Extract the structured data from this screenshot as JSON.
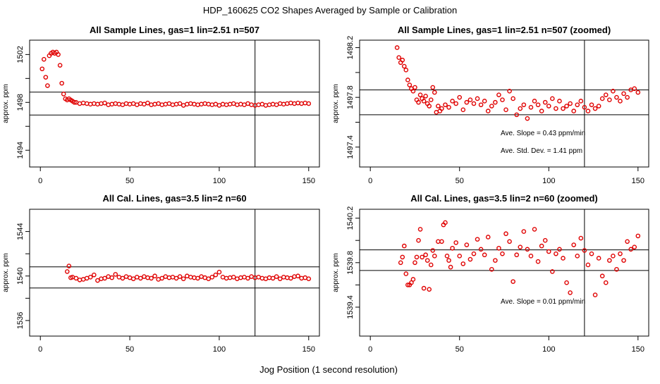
{
  "figure": {
    "title": "HDP_160625  CO2 Shapes Averaged by Sample or Calibration",
    "xlabel": "Jog Position (1 second resolution)"
  },
  "colors": {
    "points": "#e00000",
    "axes": "#000000",
    "background": "#ffffff"
  },
  "chart_data": [
    {
      "type": "scatter",
      "title": "All Sample Lines, gas=1 lin=2.51 n=507",
      "xlabel": "",
      "ylabel": "approx. ppm",
      "xlim": [
        -6,
        156
      ],
      "ylim": [
        1492.6,
        1503.2
      ],
      "x_ticks": [
        0,
        50,
        100,
        150
      ],
      "y_ticks": [
        1494,
        1498,
        1502
      ],
      "hlines": [
        1498.86,
        1496.94
      ],
      "vline": 120,
      "grid": false,
      "annotations": [],
      "points": [
        [
          1,
          1500.8
        ],
        [
          2,
          1501.6
        ],
        [
          3,
          1500.1
        ],
        [
          4,
          1499.4
        ],
        [
          5,
          1501.9
        ],
        [
          6,
          1502.1
        ],
        [
          7,
          1502.2
        ],
        [
          8,
          1502.1
        ],
        [
          9,
          1502.2
        ],
        [
          10,
          1502.0
        ],
        [
          11,
          1501.1
        ],
        [
          12,
          1499.6
        ],
        [
          13,
          1498.7
        ],
        [
          14,
          1498.3
        ],
        [
          15,
          1498.2
        ],
        [
          16,
          1498.3
        ],
        [
          17,
          1498.2
        ],
        [
          18,
          1498.1
        ],
        [
          19,
          1498.0
        ],
        [
          20,
          1498.0
        ],
        [
          22,
          1497.9
        ],
        [
          24,
          1497.95
        ],
        [
          26,
          1497.9
        ],
        [
          28,
          1497.85
        ],
        [
          30,
          1497.9
        ],
        [
          32,
          1497.85
        ],
        [
          34,
          1497.9
        ],
        [
          36,
          1497.95
        ],
        [
          38,
          1497.8
        ],
        [
          40,
          1497.85
        ],
        [
          42,
          1497.9
        ],
        [
          44,
          1497.85
        ],
        [
          46,
          1497.8
        ],
        [
          48,
          1497.9
        ],
        [
          50,
          1497.85
        ],
        [
          52,
          1497.9
        ],
        [
          54,
          1497.8
        ],
        [
          56,
          1497.9
        ],
        [
          58,
          1497.85
        ],
        [
          60,
          1497.95
        ],
        [
          62,
          1497.8
        ],
        [
          64,
          1497.85
        ],
        [
          66,
          1497.9
        ],
        [
          68,
          1497.8
        ],
        [
          70,
          1497.85
        ],
        [
          72,
          1497.9
        ],
        [
          74,
          1497.8
        ],
        [
          76,
          1497.85
        ],
        [
          78,
          1497.9
        ],
        [
          80,
          1497.75
        ],
        [
          82,
          1497.85
        ],
        [
          84,
          1497.9
        ],
        [
          86,
          1497.85
        ],
        [
          88,
          1497.8
        ],
        [
          90,
          1497.85
        ],
        [
          92,
          1497.9
        ],
        [
          94,
          1497.85
        ],
        [
          96,
          1497.8
        ],
        [
          98,
          1497.85
        ],
        [
          100,
          1497.75
        ],
        [
          102,
          1497.85
        ],
        [
          104,
          1497.8
        ],
        [
          106,
          1497.85
        ],
        [
          108,
          1497.9
        ],
        [
          110,
          1497.8
        ],
        [
          112,
          1497.85
        ],
        [
          114,
          1497.8
        ],
        [
          116,
          1497.9
        ],
        [
          118,
          1497.8
        ],
        [
          120,
          1497.75
        ],
        [
          122,
          1497.8
        ],
        [
          124,
          1497.85
        ],
        [
          126,
          1497.75
        ],
        [
          128,
          1497.8
        ],
        [
          130,
          1497.85
        ],
        [
          132,
          1497.8
        ],
        [
          134,
          1497.9
        ],
        [
          136,
          1497.85
        ],
        [
          138,
          1497.9
        ],
        [
          140,
          1497.95
        ],
        [
          142,
          1497.9
        ],
        [
          144,
          1497.95
        ],
        [
          146,
          1497.9
        ],
        [
          148,
          1497.95
        ],
        [
          150,
          1497.9
        ]
      ]
    },
    {
      "type": "scatter",
      "title": "All Sample Lines, gas=1 lin=2.51 n=507 (zoomed)",
      "xlabel": "",
      "ylabel": "approx. ppm",
      "xlim": [
        -6,
        156
      ],
      "ylim": [
        1497.24,
        1498.26
      ],
      "x_ticks": [
        0,
        50,
        100,
        150
      ],
      "y_ticks": [
        1497.4,
        1497.8,
        1498.2
      ],
      "hlines": [
        1497.86,
        1497.66
      ],
      "vline": 120,
      "grid": false,
      "annotations": [
        "Ave. Slope =  0.43  ppm/min",
        "Ave. Std. Dev. =  1.41  ppm"
      ],
      "points": [
        [
          15,
          1498.2
        ],
        [
          16,
          1498.12
        ],
        [
          17,
          1498.08
        ],
        [
          18,
          1498.1
        ],
        [
          19,
          1498.05
        ],
        [
          20,
          1498.02
        ],
        [
          21,
          1497.94
        ],
        [
          22,
          1497.9
        ],
        [
          23,
          1497.87
        ],
        [
          24,
          1497.85
        ],
        [
          25,
          1497.88
        ],
        [
          26,
          1497.78
        ],
        [
          27,
          1497.76
        ],
        [
          28,
          1497.82
        ],
        [
          29,
          1497.79
        ],
        [
          30,
          1497.77
        ],
        [
          31,
          1497.81
        ],
        [
          32,
          1497.75
        ],
        [
          33,
          1497.73
        ],
        [
          34,
          1497.78
        ],
        [
          35,
          1497.88
        ],
        [
          36,
          1497.84
        ],
        [
          37,
          1497.68
        ],
        [
          38,
          1497.73
        ],
        [
          39,
          1497.69
        ],
        [
          40,
          1497.71
        ],
        [
          42,
          1497.74
        ],
        [
          44,
          1497.72
        ],
        [
          46,
          1497.77
        ],
        [
          48,
          1497.75
        ],
        [
          50,
          1497.8
        ],
        [
          52,
          1497.7
        ],
        [
          54,
          1497.76
        ],
        [
          56,
          1497.78
        ],
        [
          58,
          1497.75
        ],
        [
          60,
          1497.79
        ],
        [
          62,
          1497.74
        ],
        [
          64,
          1497.77
        ],
        [
          66,
          1497.69
        ],
        [
          68,
          1497.73
        ],
        [
          70,
          1497.76
        ],
        [
          72,
          1497.82
        ],
        [
          74,
          1497.78
        ],
        [
          76,
          1497.7
        ],
        [
          78,
          1497.85
        ],
        [
          80,
          1497.79
        ],
        [
          82,
          1497.66
        ],
        [
          84,
          1497.71
        ],
        [
          86,
          1497.74
        ],
        [
          88,
          1497.63
        ],
        [
          90,
          1497.72
        ],
        [
          92,
          1497.77
        ],
        [
          94,
          1497.74
        ],
        [
          96,
          1497.69
        ],
        [
          98,
          1497.76
        ],
        [
          100,
          1497.73
        ],
        [
          102,
          1497.79
        ],
        [
          104,
          1497.71
        ],
        [
          106,
          1497.77
        ],
        [
          108,
          1497.71
        ],
        [
          110,
          1497.73
        ],
        [
          112,
          1497.75
        ],
        [
          114,
          1497.69
        ],
        [
          116,
          1497.74
        ],
        [
          118,
          1497.77
        ],
        [
          120,
          1497.72
        ],
        [
          122,
          1497.69
        ],
        [
          124,
          1497.74
        ],
        [
          126,
          1497.71
        ],
        [
          128,
          1497.73
        ],
        [
          130,
          1497.79
        ],
        [
          132,
          1497.82
        ],
        [
          134,
          1497.78
        ],
        [
          136,
          1497.85
        ],
        [
          138,
          1497.8
        ],
        [
          140,
          1497.77
        ],
        [
          142,
          1497.83
        ],
        [
          144,
          1497.8
        ],
        [
          146,
          1497.86
        ],
        [
          148,
          1497.87
        ],
        [
          150,
          1497.84
        ]
      ]
    },
    {
      "type": "scatter",
      "title": "All Cal. Lines, gas=3.5 lin=2 n=60",
      "xlabel": "",
      "ylabel": "approx. ppm",
      "xlim": [
        -6,
        156
      ],
      "ylim": [
        1534.6,
        1546.0
      ],
      "x_ticks": [
        0,
        50,
        100,
        150
      ],
      "y_ticks": [
        1536,
        1540,
        1544
      ],
      "hlines": [
        1540.82,
        1538.92
      ],
      "vline": 120,
      "grid": false,
      "annotations": [],
      "points": [
        [
          15,
          1540.4
        ],
        [
          16,
          1540.9
        ],
        [
          17,
          1539.85
        ],
        [
          18,
          1539.9
        ],
        [
          20,
          1539.8
        ],
        [
          22,
          1539.65
        ],
        [
          24,
          1539.7
        ],
        [
          26,
          1539.8
        ],
        [
          28,
          1539.9
        ],
        [
          30,
          1540.1
        ],
        [
          32,
          1539.6
        ],
        [
          34,
          1539.75
        ],
        [
          36,
          1539.8
        ],
        [
          38,
          1539.95
        ],
        [
          40,
          1539.85
        ],
        [
          42,
          1540.15
        ],
        [
          44,
          1539.9
        ],
        [
          46,
          1539.8
        ],
        [
          48,
          1539.95
        ],
        [
          50,
          1539.85
        ],
        [
          52,
          1539.75
        ],
        [
          54,
          1539.9
        ],
        [
          56,
          1539.8
        ],
        [
          58,
          1539.95
        ],
        [
          60,
          1539.85
        ],
        [
          62,
          1539.8
        ],
        [
          64,
          1540.0
        ],
        [
          66,
          1539.7
        ],
        [
          68,
          1539.8
        ],
        [
          70,
          1539.95
        ],
        [
          72,
          1539.85
        ],
        [
          74,
          1539.9
        ],
        [
          76,
          1539.8
        ],
        [
          78,
          1539.95
        ],
        [
          80,
          1539.75
        ],
        [
          82,
          1540.0
        ],
        [
          84,
          1539.9
        ],
        [
          86,
          1539.85
        ],
        [
          88,
          1539.8
        ],
        [
          90,
          1539.95
        ],
        [
          92,
          1539.85
        ],
        [
          94,
          1539.75
        ],
        [
          96,
          1539.9
        ],
        [
          98,
          1540.1
        ],
        [
          100,
          1540.35
        ],
        [
          102,
          1539.9
        ],
        [
          104,
          1539.8
        ],
        [
          106,
          1539.85
        ],
        [
          108,
          1539.9
        ],
        [
          110,
          1539.75
        ],
        [
          112,
          1539.85
        ],
        [
          114,
          1539.9
        ],
        [
          116,
          1539.8
        ],
        [
          118,
          1539.95
        ],
        [
          120,
          1539.85
        ],
        [
          122,
          1539.9
        ],
        [
          124,
          1539.8
        ],
        [
          126,
          1539.75
        ],
        [
          128,
          1539.85
        ],
        [
          130,
          1539.8
        ],
        [
          132,
          1539.95
        ],
        [
          134,
          1539.75
        ],
        [
          136,
          1539.9
        ],
        [
          138,
          1539.85
        ],
        [
          140,
          1539.8
        ],
        [
          142,
          1539.95
        ],
        [
          144,
          1540.0
        ],
        [
          146,
          1539.8
        ],
        [
          148,
          1539.85
        ],
        [
          150,
          1539.75
        ]
      ]
    },
    {
      "type": "scatter",
      "title": "All Cal. Lines, gas=3.5 lin=2 n=60 (zoomed)",
      "xlabel": "",
      "ylabel": "approx. ppm",
      "xlim": [
        -6,
        156
      ],
      "ylim": [
        1539.14,
        1540.28
      ],
      "x_ticks": [
        0,
        50,
        100,
        150
      ],
      "y_ticks": [
        1539.4,
        1539.8,
        1540.2
      ],
      "hlines": [
        1539.915,
        1539.73
      ],
      "vline": 120,
      "grid": false,
      "annotations": [
        "Ave. Slope =  0.01  ppm/min"
      ],
      "points": [
        [
          17,
          1539.8
        ],
        [
          18,
          1539.85
        ],
        [
          19,
          1539.95
        ],
        [
          20,
          1539.7
        ],
        [
          21,
          1539.6
        ],
        [
          22,
          1539.6
        ],
        [
          23,
          1539.62
        ],
        [
          24,
          1539.65
        ],
        [
          25,
          1539.8
        ],
        [
          26,
          1539.85
        ],
        [
          27,
          1540.0
        ],
        [
          28,
          1540.1
        ],
        [
          29,
          1539.85
        ],
        [
          30,
          1539.57
        ],
        [
          31,
          1539.87
        ],
        [
          32,
          1539.82
        ],
        [
          33,
          1539.56
        ],
        [
          34,
          1539.78
        ],
        [
          35,
          1539.91
        ],
        [
          36,
          1539.86
        ],
        [
          38,
          1539.99
        ],
        [
          40,
          1539.99
        ],
        [
          41,
          1540.14
        ],
        [
          42,
          1540.16
        ],
        [
          43,
          1539.86
        ],
        [
          44,
          1539.82
        ],
        [
          45,
          1539.76
        ],
        [
          46,
          1539.93
        ],
        [
          48,
          1539.98
        ],
        [
          50,
          1539.86
        ],
        [
          52,
          1539.79
        ],
        [
          54,
          1539.96
        ],
        [
          56,
          1539.83
        ],
        [
          58,
          1539.88
        ],
        [
          60,
          1540.01
        ],
        [
          62,
          1539.92
        ],
        [
          64,
          1539.87
        ],
        [
          66,
          1540.03
        ],
        [
          68,
          1539.74
        ],
        [
          70,
          1539.82
        ],
        [
          72,
          1539.93
        ],
        [
          74,
          1539.88
        ],
        [
          76,
          1540.06
        ],
        [
          78,
          1539.99
        ],
        [
          80,
          1539.63
        ],
        [
          82,
          1539.87
        ],
        [
          84,
          1539.94
        ],
        [
          86,
          1540.08
        ],
        [
          88,
          1539.92
        ],
        [
          90,
          1539.86
        ],
        [
          92,
          1540.1
        ],
        [
          94,
          1539.81
        ],
        [
          96,
          1539.95
        ],
        [
          98,
          1540.0
        ],
        [
          100,
          1539.9
        ],
        [
          102,
          1539.72
        ],
        [
          104,
          1539.88
        ],
        [
          106,
          1539.92
        ],
        [
          108,
          1539.84
        ],
        [
          110,
          1539.62
        ],
        [
          112,
          1539.53
        ],
        [
          114,
          1539.96
        ],
        [
          116,
          1539.86
        ],
        [
          118,
          1540.02
        ],
        [
          120,
          1539.91
        ],
        [
          122,
          1539.78
        ],
        [
          124,
          1539.88
        ],
        [
          126,
          1539.51
        ],
        [
          128,
          1539.84
        ],
        [
          130,
          1539.68
        ],
        [
          132,
          1539.62
        ],
        [
          134,
          1539.82
        ],
        [
          136,
          1539.86
        ],
        [
          138,
          1539.74
        ],
        [
          140,
          1539.88
        ],
        [
          142,
          1539.82
        ],
        [
          144,
          1539.99
        ],
        [
          146,
          1539.92
        ],
        [
          148,
          1539.94
        ],
        [
          150,
          1540.04
        ]
      ]
    }
  ]
}
